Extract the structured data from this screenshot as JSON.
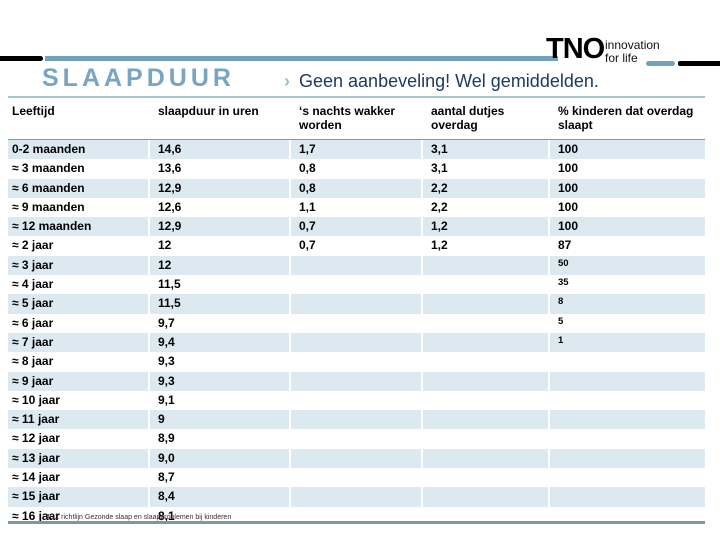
{
  "logo": {
    "tno": "TNO",
    "tagline_line1": "innovation",
    "tagline_line2": "for life"
  },
  "header": {
    "title": "SLAAPDUUR",
    "chevron": "›",
    "subtitle": "Geen aanbeveling! Wel gemiddelden."
  },
  "table": {
    "columns": [
      "Leeftijd",
      "slaapduur in uren",
      "‘s nachts wakker worden",
      "aantal dutjes overdag",
      "% kinderen dat overdag slaapt"
    ],
    "rows": [
      {
        "leeftijd": "0-2 maanden",
        "slaapduur": "14,6",
        "wakker": "1,7",
        "dutjes": "3,1",
        "pct": "100",
        "pct_small": false
      },
      {
        "leeftijd": "≈ 3 maanden",
        "slaapduur": "13,6",
        "wakker": "0,8",
        "dutjes": "3,1",
        "pct": "100",
        "pct_small": false
      },
      {
        "leeftijd": "≈ 6 maanden",
        "slaapduur": "12,9",
        "wakker": "0,8",
        "dutjes": "2,2",
        "pct": "100",
        "pct_small": false
      },
      {
        "leeftijd": "≈ 9 maanden",
        "slaapduur": "12,6",
        "wakker": "1,1",
        "dutjes": "2,2",
        "pct": "100",
        "pct_small": false
      },
      {
        "leeftijd": "≈ 12 maanden",
        "slaapduur": "12,9",
        "wakker": "0,7",
        "dutjes": "1,2",
        "pct": "100",
        "pct_small": false
      },
      {
        "leeftijd": "≈ 2 jaar",
        "slaapduur": "12",
        "wakker": "0,7",
        "dutjes": "1,2",
        "pct": "87",
        "pct_small": false
      },
      {
        "leeftijd": "≈ 3 jaar",
        "slaapduur": "12",
        "wakker": "",
        "dutjes": "",
        "pct": "50",
        "pct_small": true
      },
      {
        "leeftijd": "≈ 4 jaar",
        "slaapduur": "11,5",
        "wakker": "",
        "dutjes": "",
        "pct": "35",
        "pct_small": true
      },
      {
        "leeftijd": "≈ 5 jaar",
        "slaapduur": "11,5",
        "wakker": "",
        "dutjes": "",
        "pct": "8",
        "pct_small": true
      },
      {
        "leeftijd": "≈ 6 jaar",
        "slaapduur": "9,7",
        "wakker": "",
        "dutjes": "",
        "pct": "5",
        "pct_small": true
      },
      {
        "leeftijd": "≈ 7 jaar",
        "slaapduur": "9,4",
        "wakker": "",
        "dutjes": "",
        "pct": "1",
        "pct_small": true
      },
      {
        "leeftijd": "≈ 8 jaar",
        "slaapduur": "9,3",
        "wakker": "",
        "dutjes": "",
        "pct": "",
        "pct_small": false
      },
      {
        "leeftijd": "≈ 9 jaar",
        "slaapduur": "9,3",
        "wakker": "",
        "dutjes": "",
        "pct": "",
        "pct_small": false
      },
      {
        "leeftijd": "≈ 10 jaar",
        "slaapduur": "9,1",
        "wakker": "",
        "dutjes": "",
        "pct": "",
        "pct_small": false
      },
      {
        "leeftijd": "≈ 11 jaar",
        "slaapduur": "9",
        "wakker": "",
        "dutjes": "",
        "pct": "",
        "pct_small": false
      },
      {
        "leeftijd": "≈ 12 jaar",
        "slaapduur": "8,9",
        "wakker": "",
        "dutjes": "",
        "pct": "",
        "pct_small": false
      },
      {
        "leeftijd": "≈ 13 jaar",
        "slaapduur": "9,0",
        "wakker": "",
        "dutjes": "",
        "pct": "",
        "pct_small": false
      },
      {
        "leeftijd": "≈ 14 jaar",
        "slaapduur": "8,7",
        "wakker": "",
        "dutjes": "",
        "pct": "",
        "pct_small": false
      },
      {
        "leeftijd": "≈ 15 jaar",
        "slaapduur": "8,4",
        "wakker": "",
        "dutjes": "",
        "pct": "",
        "pct_small": false
      },
      {
        "leeftijd": "≈ 16 jaar",
        "slaapduur": "8,1",
        "wakker": "",
        "dutjes": "",
        "pct": "",
        "pct_small": false
      }
    ]
  },
  "footer": {
    "source": "JGZ richtlijn Gezonde slaap en slaapproblemen bij kinderen"
  },
  "colors": {
    "accent_blue": "#74a2bd",
    "title_blue": "#79a5c5",
    "row_alt_blue": "#dce9f1",
    "subtitle_navy": "#1c3a63",
    "bottom_line": "#7e97a4"
  }
}
